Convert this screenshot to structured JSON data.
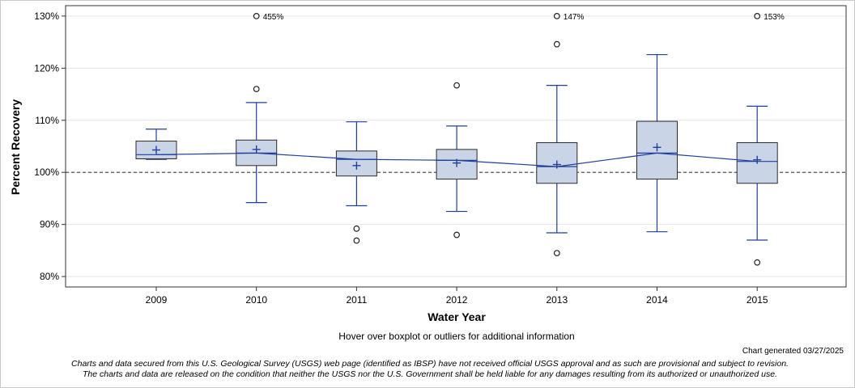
{
  "chart_data": {
    "type": "boxplot",
    "xlabel": "Water Year",
    "ylabel": "Percent Recovery",
    "ylim": [
      78,
      132
    ],
    "yticks": [
      80,
      90,
      100,
      110,
      120,
      130
    ],
    "ytick_labels": [
      "80%",
      "90%",
      "100%",
      "110%",
      "120%",
      "130%"
    ],
    "reference_line": 100,
    "categories": [
      "2009",
      "2010",
      "2011",
      "2012",
      "2013",
      "2014",
      "2015"
    ],
    "boxes": [
      {
        "year": "2009",
        "whisker_low": 102.5,
        "q1": 102.6,
        "median": 103.4,
        "q3": 106.0,
        "whisker_high": 108.3,
        "mean": 104.3,
        "outliers": []
      },
      {
        "year": "2010",
        "whisker_low": 94.2,
        "q1": 101.3,
        "median": 103.7,
        "q3": 106.2,
        "whisker_high": 113.4,
        "mean": 104.4,
        "outliers": [
          116.0
        ],
        "offscale": "455%"
      },
      {
        "year": "2011",
        "whisker_low": 93.6,
        "q1": 99.3,
        "median": 102.5,
        "q3": 104.1,
        "whisker_high": 109.7,
        "mean": 101.3,
        "outliers": [
          89.2,
          86.9
        ]
      },
      {
        "year": "2012",
        "whisker_low": 92.5,
        "q1": 98.7,
        "median": 102.3,
        "q3": 104.4,
        "whisker_high": 108.9,
        "mean": 101.8,
        "outliers": [
          116.7,
          88.0
        ]
      },
      {
        "year": "2013",
        "whisker_low": 88.4,
        "q1": 97.9,
        "median": 101.1,
        "q3": 105.7,
        "whisker_high": 116.7,
        "mean": 101.5,
        "outliers": [
          124.6,
          84.5
        ],
        "offscale": "147%"
      },
      {
        "year": "2014",
        "whisker_low": 88.6,
        "q1": 98.7,
        "median": 103.7,
        "q3": 109.8,
        "whisker_high": 122.6,
        "mean": 104.8,
        "outliers": []
      },
      {
        "year": "2015",
        "whisker_low": 87.0,
        "q1": 97.9,
        "median": 102.1,
        "q3": 105.7,
        "whisker_high": 112.7,
        "mean": 102.4,
        "outliers": [
          82.7
        ],
        "offscale": "153%"
      }
    ],
    "colors": {
      "box_fill": "#c9d4e6",
      "box_stroke": "#2a2a2a",
      "whisker": "#1f3f9e",
      "median_line": "#1f3f9e",
      "mean_marker": "#1f3f9e",
      "outlier": "#222222",
      "grid": "#e6e6e6",
      "reference": "#555555"
    }
  },
  "texts": {
    "hint": "Hover over boxplot or outliers for additional information",
    "generated": "Chart generated 03/27/2025",
    "disclaimer_line1": "Charts and data secured from this U.S. Geological Survey (USGS) web page (identified as IBSP) have not received official USGS approval and as such are provisional and subject to revision.",
    "disclaimer_line2": "The charts and data are released on the condition that neither the USGS nor the U.S. Government shall be held liable for any damages resulting from its authorized or unauthorized use."
  }
}
